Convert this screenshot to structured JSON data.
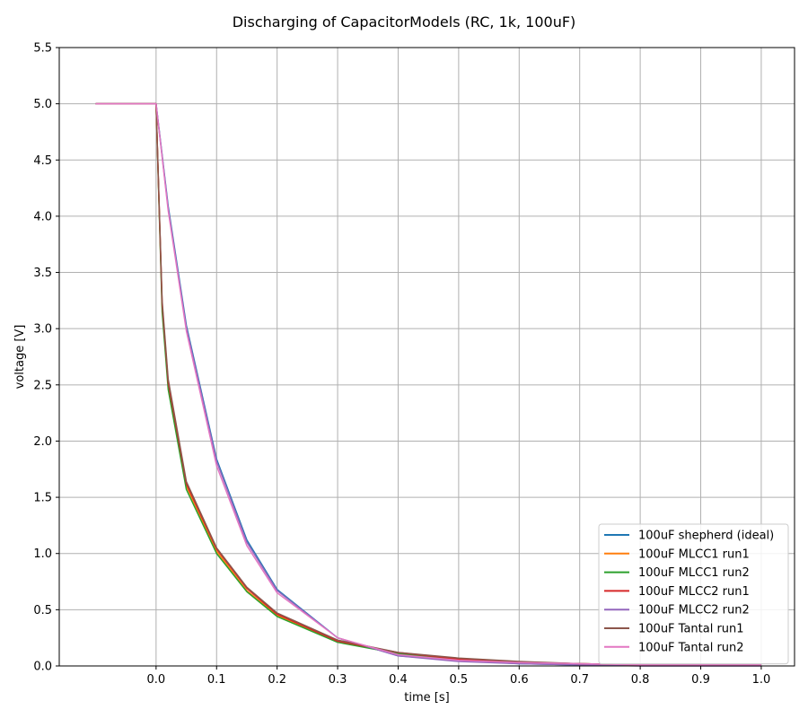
{
  "chart_data": {
    "type": "line",
    "title": "Discharging of CapacitorModels (RC, 1k, 100uF)",
    "xlabel": "time [s]",
    "ylabel": "voltage [V]",
    "xlim": [
      -0.16,
      1.055
    ],
    "ylim": [
      0.0,
      5.5
    ],
    "xticks": [
      0.0,
      0.1,
      0.2,
      0.3,
      0.4,
      0.5,
      0.6,
      0.7,
      0.8,
      0.9,
      1.0
    ],
    "xtick_labels": [
      "0.0",
      "0.1",
      "0.2",
      "0.3",
      "0.4",
      "0.5",
      "0.6",
      "0.7",
      "0.8",
      "0.9",
      "1.0"
    ],
    "yticks": [
      0.0,
      0.5,
      1.0,
      1.5,
      2.0,
      2.5,
      3.0,
      3.5,
      4.0,
      4.5,
      5.0,
      5.5
    ],
    "ytick_labels": [
      "0.0",
      "0.5",
      "1.0",
      "1.5",
      "2.0",
      "2.5",
      "3.0",
      "3.5",
      "4.0",
      "4.5",
      "5.0",
      "5.5"
    ],
    "grid": true,
    "legend_position": "lower-right",
    "series": [
      {
        "name": "100uF shepherd (ideal)",
        "color": "#1f77b4",
        "x": [
          -0.1,
          0.0,
          0.02,
          0.05,
          0.1,
          0.15,
          0.2,
          0.3,
          0.4,
          0.5,
          0.6,
          0.7,
          0.8,
          0.9,
          1.0
        ],
        "y": [
          5.0,
          5.0,
          4.09,
          3.03,
          1.84,
          1.12,
          0.68,
          0.25,
          0.09,
          0.05,
          0.02,
          0.01,
          0.01,
          0.01,
          0.01
        ]
      },
      {
        "name": "100uF MLCC1 run1",
        "color": "#ff7f0e",
        "x": [
          -0.1,
          0.0,
          0.01,
          0.02,
          0.05,
          0.1,
          0.15,
          0.2,
          0.3,
          0.4,
          0.5,
          0.6,
          0.7,
          0.8,
          0.9,
          1.0
        ],
        "y": [
          5.0,
          5.0,
          3.2,
          2.5,
          1.6,
          1.02,
          0.67,
          0.45,
          0.22,
          0.11,
          0.06,
          0.03,
          0.02,
          0.01,
          0.01,
          0.01
        ]
      },
      {
        "name": "100uF MLCC1 run2",
        "color": "#2ca02c",
        "x": [
          -0.1,
          0.0,
          0.01,
          0.02,
          0.05,
          0.1,
          0.15,
          0.2,
          0.3,
          0.4,
          0.5,
          0.6,
          0.7,
          0.8,
          0.9,
          1.0
        ],
        "y": [
          5.0,
          5.0,
          3.15,
          2.46,
          1.57,
          1.0,
          0.66,
          0.44,
          0.21,
          0.11,
          0.06,
          0.03,
          0.02,
          0.01,
          0.01,
          0.01
        ]
      },
      {
        "name": "100uF MLCC2 run1",
        "color": "#d62728",
        "x": [
          -0.1,
          0.0,
          0.01,
          0.02,
          0.05,
          0.1,
          0.15,
          0.2,
          0.3,
          0.4,
          0.5,
          0.6,
          0.7,
          0.8,
          0.9,
          1.0
        ],
        "y": [
          5.0,
          5.0,
          3.22,
          2.52,
          1.62,
          1.04,
          0.69,
          0.46,
          0.22,
          0.12,
          0.06,
          0.03,
          0.02,
          0.01,
          0.01,
          0.01
        ]
      },
      {
        "name": "100uF MLCC2 run2",
        "color": "#9467bd",
        "x": [
          -0.1,
          0.0,
          0.02,
          0.05,
          0.1,
          0.15,
          0.2,
          0.3,
          0.4,
          0.5,
          0.6,
          0.7,
          0.8,
          0.9,
          1.0
        ],
        "y": [
          5.0,
          5.0,
          4.07,
          3.01,
          1.82,
          1.1,
          0.67,
          0.25,
          0.09,
          0.04,
          0.02,
          0.01,
          0.0,
          0.0,
          0.0
        ]
      },
      {
        "name": "100uF Tantal run1",
        "color": "#8c564b",
        "x": [
          -0.1,
          0.0,
          0.01,
          0.02,
          0.05,
          0.1,
          0.15,
          0.2,
          0.3,
          0.4,
          0.5,
          0.6,
          0.7,
          0.8,
          0.9,
          1.0
        ],
        "y": [
          5.0,
          5.0,
          3.25,
          2.55,
          1.64,
          1.05,
          0.7,
          0.47,
          0.23,
          0.12,
          0.07,
          0.04,
          0.02,
          0.01,
          0.01,
          0.01
        ]
      },
      {
        "name": "100uF Tantal run2",
        "color": "#e377c2",
        "x": [
          -0.1,
          0.0,
          0.02,
          0.05,
          0.1,
          0.15,
          0.2,
          0.3,
          0.4,
          0.5,
          0.6,
          0.7,
          0.8,
          0.9,
          1.0
        ],
        "y": [
          5.0,
          5.0,
          4.05,
          2.98,
          1.78,
          1.07,
          0.65,
          0.25,
          0.1,
          0.05,
          0.03,
          0.02,
          0.01,
          0.01,
          0.01
        ]
      }
    ]
  }
}
